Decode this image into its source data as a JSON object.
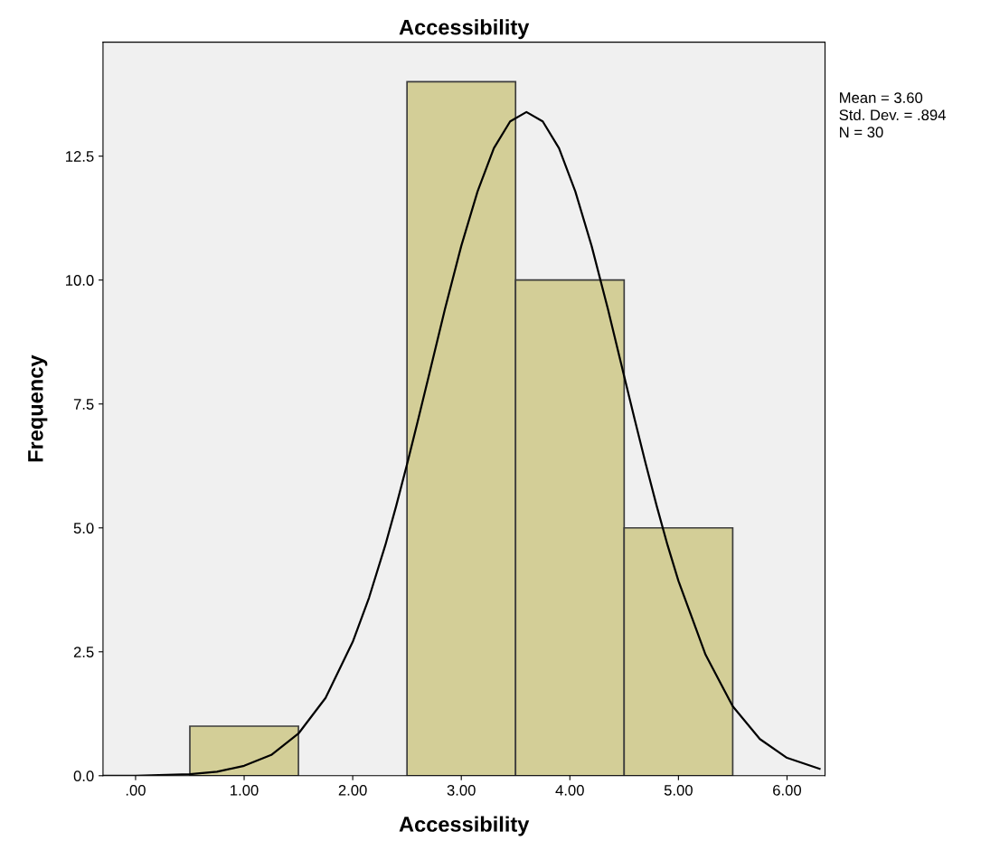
{
  "chart_data": {
    "type": "histogram",
    "title": "Accessibility",
    "xlabel": "Accessibility",
    "ylabel": "Frequency",
    "bins": [
      0.5,
      1.5,
      2.5,
      3.5,
      4.5,
      5.5
    ],
    "values": [
      1,
      0,
      14,
      10,
      5
    ],
    "color": "#d3ce97",
    "series": [
      {
        "type": "line",
        "color": "#000000",
        "x": [
          -0.3,
          0.0,
          0.5,
          0.75,
          1.0,
          1.25,
          1.5,
          1.75,
          2.0,
          2.15,
          2.3,
          2.4,
          2.5,
          2.6,
          2.7,
          2.85,
          3.0,
          3.15,
          3.3,
          3.45,
          3.6,
          3.75,
          3.9,
          4.05,
          4.2,
          4.35,
          4.5,
          4.6,
          4.7,
          4.8,
          4.9,
          5.0,
          5.25,
          5.5,
          5.75,
          6.0,
          6.3
        ],
        "values": [
          0,
          0,
          0.03,
          0.08,
          0.2,
          0.42,
          0.85,
          1.57,
          2.7,
          3.59,
          4.65,
          5.44,
          6.28,
          7.16,
          8.06,
          9.42,
          10.69,
          11.79,
          12.66,
          13.2,
          13.39,
          13.2,
          12.66,
          11.79,
          10.69,
          9.42,
          8.06,
          7.16,
          6.28,
          5.44,
          4.65,
          3.93,
          2.44,
          1.4,
          0.74,
          0.36,
          0.14
        ]
      }
    ],
    "xlim": [
      -0.3,
      6.35
    ],
    "ylim": [
      0,
      14.8
    ],
    "xticks": [
      {
        "value": 0,
        "label": ".00"
      },
      {
        "value": 1,
        "label": "1.00"
      },
      {
        "value": 2,
        "label": "2.00"
      },
      {
        "value": 3,
        "label": "3.00"
      },
      {
        "value": 4,
        "label": "4.00"
      },
      {
        "value": 5,
        "label": "5.00"
      },
      {
        "value": 6,
        "label": "6.00"
      }
    ],
    "yticks": [
      {
        "value": 0,
        "label": "0.0"
      },
      {
        "value": 2.5,
        "label": "2.5"
      },
      {
        "value": 5,
        "label": "5.0"
      },
      {
        "value": 7.5,
        "label": "7.5"
      },
      {
        "value": 10,
        "label": "10.0"
      },
      {
        "value": 12.5,
        "label": "12.5"
      }
    ],
    "annotations": [
      "Mean = 3.60",
      "Std. Dev. = .894",
      "N = 30"
    ]
  }
}
